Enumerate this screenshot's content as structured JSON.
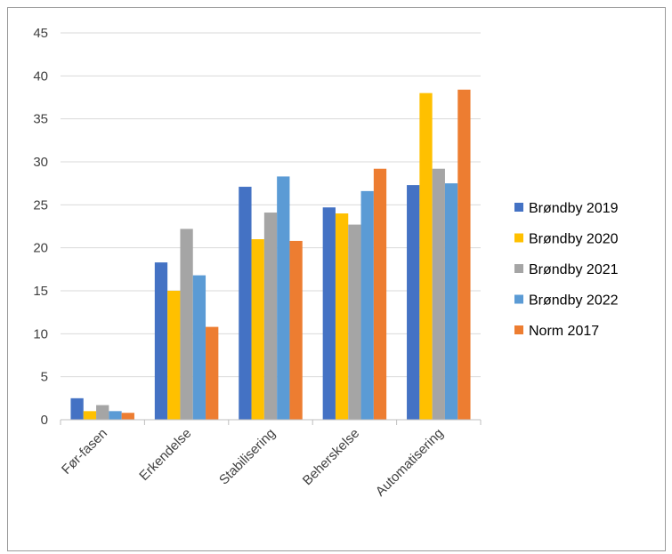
{
  "chart_data": {
    "type": "bar",
    "title": "",
    "xlabel": "",
    "ylabel": "",
    "ylim": [
      0,
      45
    ],
    "yticks": [
      0,
      5,
      10,
      15,
      20,
      25,
      30,
      35,
      40,
      45
    ],
    "grid": true,
    "legend_position": "right",
    "categories": [
      "Før-fasen",
      "Erkendelse",
      "Stabilisering",
      "Beherskelse",
      "Automatisering"
    ],
    "series": [
      {
        "name": "Brøndby 2019",
        "color": "#4472C4",
        "values": [
          2.5,
          18.3,
          27.1,
          24.7,
          27.3
        ]
      },
      {
        "name": "Brøndby 2020",
        "color": "#FFC000",
        "values": [
          1.0,
          15.0,
          21.0,
          24.0,
          38.0
        ]
      },
      {
        "name": "Brøndby 2021",
        "color": "#A5A5A5",
        "values": [
          1.7,
          22.2,
          24.1,
          22.7,
          29.2
        ]
      },
      {
        "name": "Brøndby 2022",
        "color": "#5B9BD5",
        "values": [
          1.0,
          16.8,
          28.3,
          26.6,
          27.5
        ]
      },
      {
        "name": "Norm 2017",
        "color": "#ED7D31",
        "values": [
          0.8,
          10.8,
          20.8,
          29.2,
          38.4
        ]
      }
    ]
  }
}
